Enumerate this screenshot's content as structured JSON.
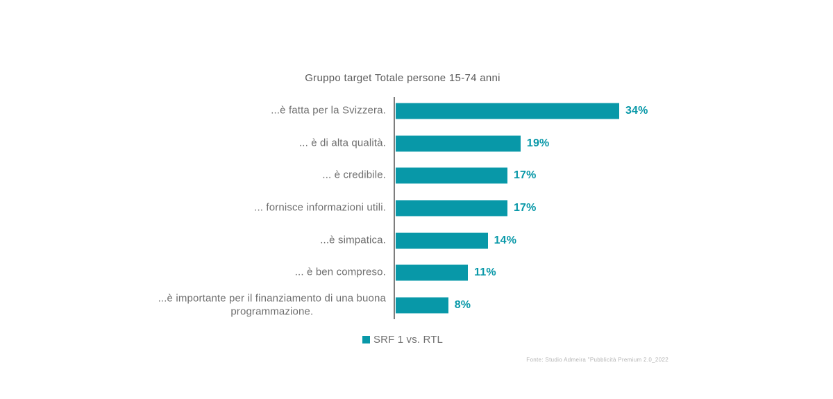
{
  "chart_data": {
    "type": "bar",
    "orientation": "horizontal",
    "title": "Gruppo target Totale persone 15-74 anni",
    "categories": [
      "...è fatta per la Svizzera.",
      "... è di alta qualità.",
      "... è credibile.",
      "... fornisce informazioni utili.",
      "...è simpatica.",
      "... è ben compreso.",
      "...è importante per il finanziamento di una buona\nprogrammazione."
    ],
    "series": [
      {
        "name": "SRF 1 vs. RTL",
        "values": [
          34,
          19,
          17,
          17,
          14,
          11,
          8
        ]
      }
    ],
    "values": [
      34,
      19,
      17,
      17,
      14,
      11,
      8
    ],
    "value_suffix": "%",
    "xlim": [
      0,
      42
    ],
    "grid": false,
    "legend_position": "bottom",
    "bar_color": "#0898a8"
  },
  "legend": {
    "label": "SRF 1 vs. RTL",
    "swatch_color": "#0898a8"
  },
  "footer": {
    "source": "Fonte: Studio Admeira \"Pubblicità Premium 2.0_2022"
  },
  "colors": {
    "accent_teal": "#0898a8",
    "title_gray": "#595959",
    "label_gray": "#6e6e6e",
    "axis_gray": "#7d7d7d",
    "footer_gray": "#b4b4b4",
    "background": "#ffffff"
  }
}
